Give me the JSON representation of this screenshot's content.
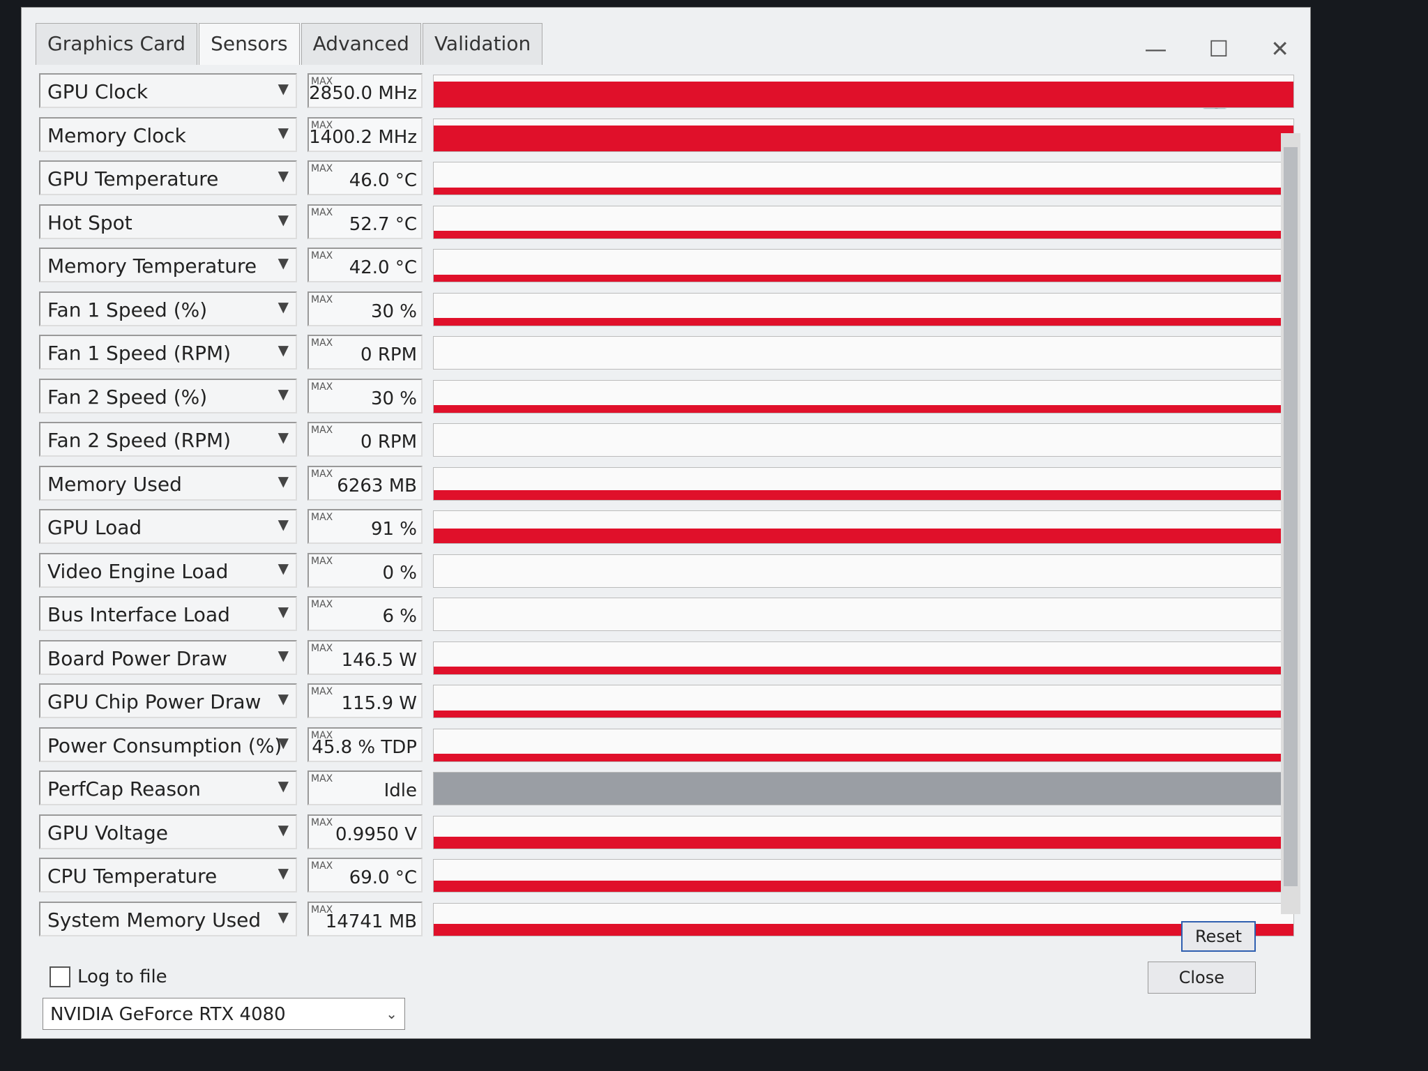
{
  "tabs": [
    "Graphics Card",
    "Sensors",
    "Advanced",
    "Validation"
  ],
  "sensors": [
    {
      "name": "GPU Clock",
      "max": "MAX",
      "value": "2850.0 MHz"
    },
    {
      "name": "Memory Clock",
      "max": "MAX",
      "value": "1400.2 MHz"
    },
    {
      "name": "GPU Temperature",
      "max": "MAX",
      "value": "46.0 °C"
    },
    {
      "name": "Hot Spot",
      "max": "MAX",
      "value": "52.7 °C"
    },
    {
      "name": "Memory Temperature",
      "max": "MAX",
      "value": "42.0 °C"
    },
    {
      "name": "Fan 1 Speed (%)",
      "max": "MAX",
      "value": "30 %"
    },
    {
      "name": "Fan 1 Speed (RPM)",
      "max": "MAX",
      "value": "0 RPM"
    },
    {
      "name": "Fan 2 Speed (%)",
      "max": "MAX",
      "value": "30 %"
    },
    {
      "name": "Fan 2 Speed (RPM)",
      "max": "MAX",
      "value": "0 RPM"
    },
    {
      "name": "Memory Used",
      "max": "MAX",
      "value": "6263 MB"
    },
    {
      "name": "GPU Load",
      "max": "MAX",
      "value": "91 %"
    },
    {
      "name": "Video Engine Load",
      "max": "MAX",
      "value": "0 %"
    },
    {
      "name": "Bus Interface Load",
      "max": "MAX",
      "value": "6 %"
    },
    {
      "name": "Board Power Draw",
      "max": "MAX",
      "value": "146.5 W"
    },
    {
      "name": "GPU Chip Power Draw",
      "max": "MAX",
      "value": "115.9 W"
    },
    {
      "name": "Power Consumption (%)",
      "max": "MAX",
      "value": "45.8 % TDP"
    },
    {
      "name": "PerfCap Reason",
      "max": "MAX",
      "value": "Idle"
    },
    {
      "name": "GPU Voltage",
      "max": "MAX",
      "value": "0.9950 V"
    },
    {
      "name": "CPU Temperature",
      "max": "MAX",
      "value": "69.0 °C"
    },
    {
      "name": "System Memory Used",
      "max": "MAX",
      "value": "14741 MB"
    }
  ],
  "log_to_file": "Log to file",
  "reset": "Reset",
  "close": "Close",
  "device": "NVIDIA GeForce RTX 4080"
}
